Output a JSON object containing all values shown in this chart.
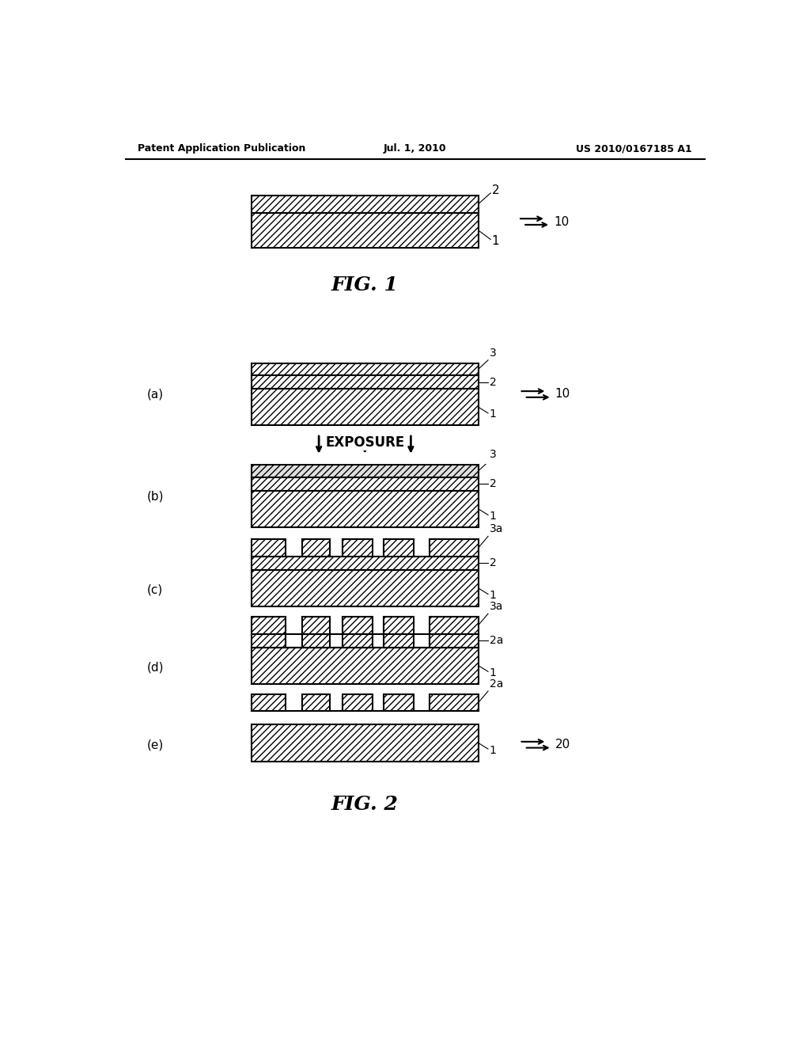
{
  "bg_color": "#ffffff",
  "header_left": "Patent Application Publication",
  "header_center": "Jul. 1, 2010",
  "header_right": "US 2010/0167185 A1",
  "fig1_title": "FIG. 1",
  "fig2_title": "FIG. 2"
}
